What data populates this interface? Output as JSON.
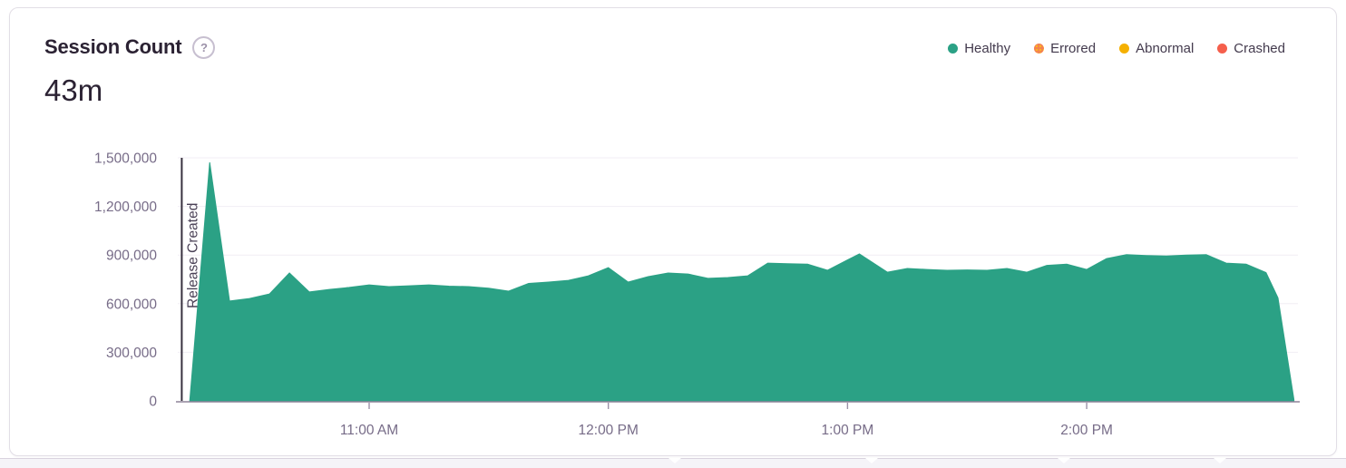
{
  "panel": {
    "title": "Session Count",
    "help_icon": "?",
    "big_number": "43m"
  },
  "legend": [
    {
      "label": "Healthy",
      "color": "#2BA185",
      "pattern": "solid"
    },
    {
      "label": "Errored",
      "color": "#F4834F",
      "pattern": "dotted",
      "dot_color": "#FDB81B"
    },
    {
      "label": "Abnormal",
      "color": "#F5B000",
      "pattern": "solid"
    },
    {
      "label": "Crashed",
      "color": "#F55F4C",
      "pattern": "solid"
    }
  ],
  "chart_data": {
    "type": "area",
    "title": "Session Count",
    "series": [
      {
        "name": "Healthy",
        "color": "#2BA185",
        "x": [
          "10:15",
          "10:20",
          "10:25",
          "10:30",
          "10:35",
          "10:40",
          "10:45",
          "10:50",
          "10:55",
          "11:00",
          "11:05",
          "11:10",
          "11:15",
          "11:20",
          "11:25",
          "11:30",
          "11:35",
          "11:40",
          "11:45",
          "11:50",
          "11:55",
          "12:00",
          "12:05",
          "12:10",
          "12:15",
          "12:20",
          "12:25",
          "12:30",
          "12:35",
          "12:40",
          "12:45",
          "12:50",
          "12:55",
          "13:00",
          "13:03",
          "13:10",
          "13:15",
          "13:20",
          "13:25",
          "13:30",
          "13:35",
          "13:40",
          "13:45",
          "13:50",
          "13:55",
          "14:00",
          "14:05",
          "14:10",
          "14:15",
          "14:20",
          "14:25",
          "14:30",
          "14:35",
          "14:40",
          "14:45",
          "14:48",
          "14:52"
        ],
        "values": [
          0,
          1472000,
          616000,
          632000,
          660000,
          789000,
          672000,
          688000,
          700000,
          716000,
          705000,
          710000,
          716000,
          708000,
          705000,
          695000,
          677000,
          725000,
          733000,
          744000,
          772000,
          822000,
          733000,
          767000,
          789000,
          783000,
          756000,
          761000,
          772000,
          850000,
          847000,
          844000,
          806000,
          870000,
          907000,
          794000,
          817000,
          811000,
          806000,
          808000,
          806000,
          817000,
          794000,
          836000,
          844000,
          811000,
          878000,
          902000,
          897000,
          894000,
          900000,
          903000,
          850000,
          844000,
          792000,
          636000,
          8000
        ]
      }
    ],
    "x_axis": {
      "range": [
        "10:12",
        "14:53"
      ],
      "ticks": [
        {
          "label": "11:00 AM",
          "time": "11:00"
        },
        {
          "label": "12:00 PM",
          "time": "12:00"
        },
        {
          "label": "1:00 PM",
          "time": "13:00"
        },
        {
          "label": "2:00 PM",
          "time": "14:00"
        }
      ]
    },
    "y_axis": {
      "ylim": [
        0,
        1500000
      ],
      "ticks": [
        {
          "label": "0",
          "value": 0
        },
        {
          "label": "300,000",
          "value": 300000
        },
        {
          "label": "600,000",
          "value": 600000
        },
        {
          "label": "900,000",
          "value": 900000
        },
        {
          "label": "1,200,000",
          "value": 1200000
        },
        {
          "label": "1,500,000",
          "value": 1500000
        }
      ]
    },
    "grid": "horizontal",
    "legend_position": "top-right",
    "annotation": {
      "label": "Release Created",
      "time": "10:13"
    }
  }
}
